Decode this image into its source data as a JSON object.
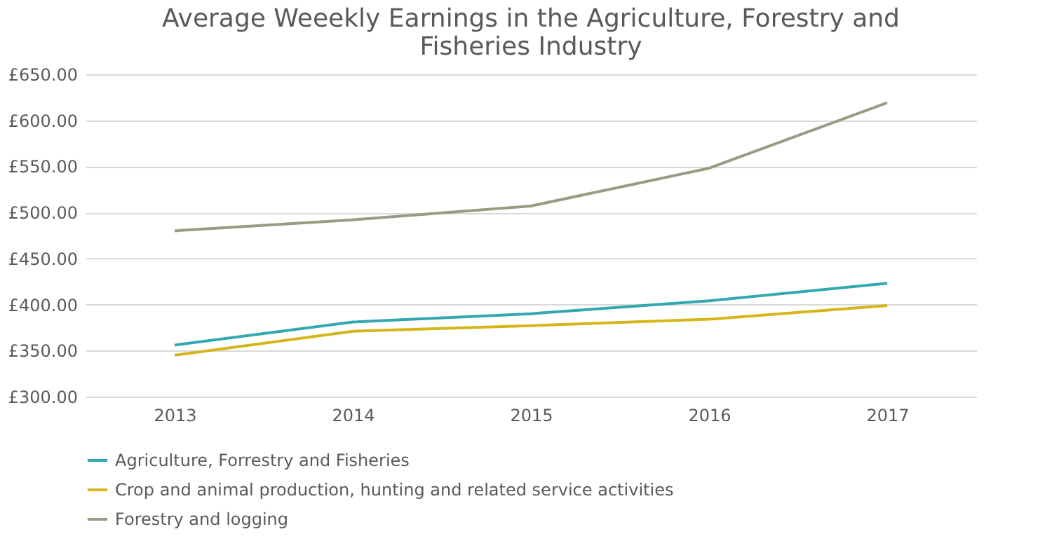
{
  "chart_data": {
    "type": "line",
    "title": "Average Weeekly Earnings in the Agriculture, Forestry and Fisheries Industry",
    "categories": [
      "2013",
      "2014",
      "2015",
      "2016",
      "2017"
    ],
    "series": [
      {
        "name": "Agriculture, Forrestry and Fisheries",
        "color": "#33a7b2",
        "values": [
          356,
          381,
          390,
          404,
          423
        ]
      },
      {
        "name": "Crop and animal production, hunting and related service activities",
        "color": "#d4b619",
        "values": [
          345,
          371,
          377,
          384,
          399
        ]
      },
      {
        "name": "Forestry and logging",
        "color": "#999c83",
        "values": [
          480,
          492,
          507,
          548,
          619
        ]
      }
    ],
    "ylim": [
      300,
      650
    ],
    "yticks": [
      {
        "value": 300,
        "label": "£300.00"
      },
      {
        "value": 350,
        "label": "£350.00"
      },
      {
        "value": 400,
        "label": "£400.00"
      },
      {
        "value": 450,
        "label": "£450.00"
      },
      {
        "value": 500,
        "label": "£500.00"
      },
      {
        "value": 550,
        "label": "£550.00"
      },
      {
        "value": 600,
        "label": "£600.00"
      },
      {
        "value": 650,
        "label": "£650.00"
      }
    ],
    "grid": "y",
    "legend": "bottom",
    "marker": "none",
    "line_style": "solid"
  }
}
